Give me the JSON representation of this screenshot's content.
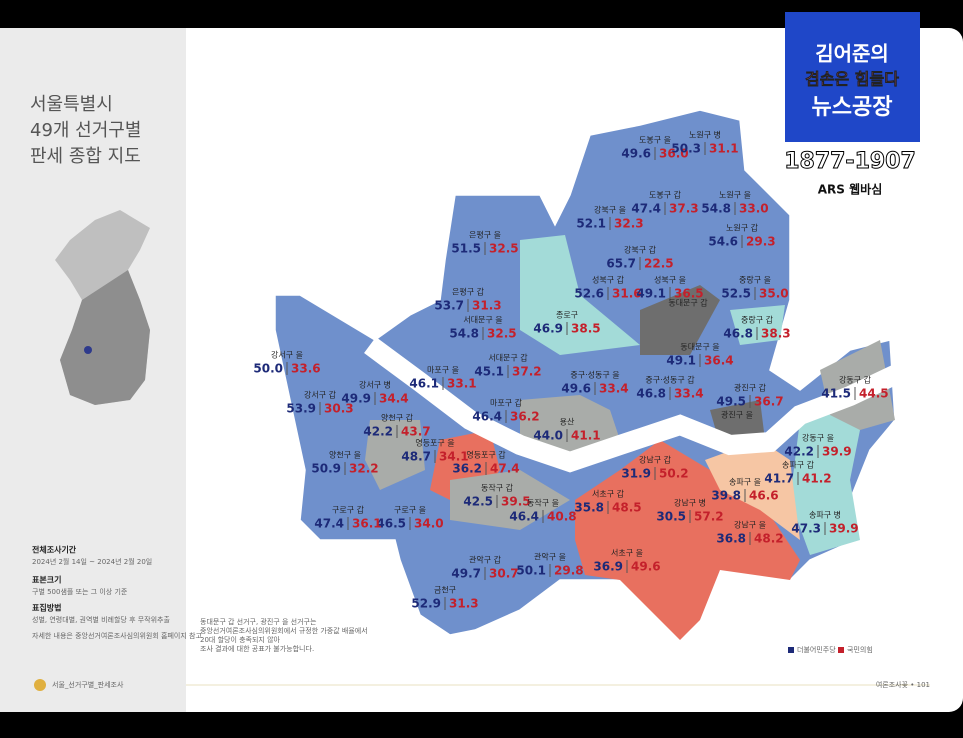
{
  "header": {
    "title_lines": [
      "서울특별시",
      "49개 선거구별",
      "판세 종합 지도"
    ]
  },
  "survey": {
    "period_label": "전체조사기간",
    "period": "2024년 2월 14일 ~ 2024년 2월 20일",
    "sample_label": "표본크기",
    "sample": "구별 500샘플 또는 그 이상 기준",
    "method_label": "표집방법",
    "method": "성별, 연령대별, 권역별 비례할당 후 무작위추출",
    "ref": "자세한 내용은 중앙선거여론조사심의위원회 홈페이지 참고"
  },
  "districts": [
    {
      "name": "도봉구 을",
      "dem": "49.6",
      "ppp": "36.0"
    },
    {
      "name": "노원구 병",
      "dem": "50.3",
      "ppp": "31.1"
    },
    {
      "name": "도봉구 갑",
      "dem": "47.4",
      "ppp": "37.3"
    },
    {
      "name": "노원구 을",
      "dem": "54.8",
      "ppp": "33.0"
    },
    {
      "name": "강북구 을",
      "dem": "52.1",
      "ppp": "32.3"
    },
    {
      "name": "노원구 갑",
      "dem": "54.6",
      "ppp": "29.3"
    },
    {
      "name": "강북구 갑",
      "dem": "65.7",
      "ppp": "22.5"
    },
    {
      "name": "은평구 을",
      "dem": "51.5",
      "ppp": "32.5"
    },
    {
      "name": "성북구 갑",
      "dem": "52.6",
      "ppp": "31.6"
    },
    {
      "name": "성북구 을",
      "dem": "49.1",
      "ppp": "36.5"
    },
    {
      "name": "중랑구 을",
      "dem": "52.5",
      "ppp": "35.0"
    },
    {
      "name": "은평구 갑",
      "dem": "53.7",
      "ppp": "31.3"
    },
    {
      "name": "동대문구 갑"
    },
    {
      "name": "종로구",
      "dem": "46.9",
      "ppp": "38.5"
    },
    {
      "name": "서대문구 을",
      "dem": "54.8",
      "ppp": "32.5"
    },
    {
      "name": "중랑구 갑",
      "dem": "46.8",
      "ppp": "38.3"
    },
    {
      "name": "동대문구 을",
      "dem": "49.1",
      "ppp": "36.4"
    },
    {
      "name": "서대문구 갑",
      "dem": "45.1",
      "ppp": "37.2"
    },
    {
      "name": "마포구 을",
      "dem": "46.1",
      "ppp": "33.1"
    },
    {
      "name": "강서구 을",
      "dem": "50.0",
      "ppp": "33.6"
    },
    {
      "name": "중구·성동구 을",
      "dem": "49.6",
      "ppp": "33.4"
    },
    {
      "name": "강동구 갑",
      "dem": "41.5",
      "ppp": "44.5"
    },
    {
      "name": "강서구 병",
      "dem": "49.9",
      "ppp": "34.4"
    },
    {
      "name": "중구·성동구 갑",
      "dem": "46.8",
      "ppp": "33.4"
    },
    {
      "name": "광진구 갑",
      "dem": "49.5",
      "ppp": "36.7"
    },
    {
      "name": "강서구 갑",
      "dem": "53.9",
      "ppp": "30.3"
    },
    {
      "name": "마포구 갑",
      "dem": "46.4",
      "ppp": "36.2"
    },
    {
      "name": "양천구 갑",
      "dem": "42.2",
      "ppp": "43.7"
    },
    {
      "name": "용산",
      "dem": "44.0",
      "ppp": "41.1"
    },
    {
      "name": "광진구 을"
    },
    {
      "name": "영등포구 을",
      "dem": "48.7",
      "ppp": "34.1"
    },
    {
      "name": "강동구 을",
      "dem": "42.2",
      "ppp": "39.9"
    },
    {
      "name": "영등포구 갑",
      "dem": "36.2",
      "ppp": "47.4"
    },
    {
      "name": "양천구 을",
      "dem": "50.9",
      "ppp": "32.2"
    },
    {
      "name": "강남구 갑",
      "dem": "31.9",
      "ppp": "50.2"
    },
    {
      "name": "송파구 갑",
      "dem": "41.7",
      "ppp": "41.2"
    },
    {
      "name": "송파구 을",
      "dem": "39.8",
      "ppp": "46.6"
    },
    {
      "name": "동작구 갑",
      "dem": "42.5",
      "ppp": "39.5"
    },
    {
      "name": "서초구 갑",
      "dem": "35.8",
      "ppp": "48.5"
    },
    {
      "name": "구로구 을",
      "dem": "46.5",
      "ppp": "34.0"
    },
    {
      "name": "구로구 갑",
      "dem": "47.4",
      "ppp": "36.1"
    },
    {
      "name": "동작구 을",
      "dem": "46.4",
      "ppp": "40.8"
    },
    {
      "name": "강남구 병",
      "dem": "30.5",
      "ppp": "57.2"
    },
    {
      "name": "송파구 병",
      "dem": "47.3",
      "ppp": "39.9"
    },
    {
      "name": "강남구 을",
      "dem": "36.8",
      "ppp": "48.2"
    },
    {
      "name": "관악구 을",
      "dem": "50.1",
      "ppp": "29.8"
    },
    {
      "name": "서초구 을",
      "dem": "36.9",
      "ppp": "49.6"
    },
    {
      "name": "관악구 갑",
      "dem": "49.7",
      "ppp": "30.7"
    },
    {
      "name": "금천구",
      "dem": "52.9",
      "ppp": "31.3"
    }
  ],
  "note_lines": [
    "동대문구 갑 선거구, 광진구 을 선거구는",
    "중앙선거여론조사심의위원회에서 규정한 가중값 배율에서",
    "20대 할당이 충족되지 않아",
    "조사 결과에 대한 공표가 불가능합니다."
  ],
  "legend": [
    "더불어민주당",
    "국민의힘"
  ],
  "footer": {
    "left": "서울_선거구별_판세조사",
    "right": "여론조사꽃 • 101"
  },
  "overlay": {
    "line1": "김어준의",
    "line2": "겸손은 힘들다",
    "line3": "뉴스공장",
    "phone": "1877-1907",
    "ars": "ARS 웹바심"
  }
}
